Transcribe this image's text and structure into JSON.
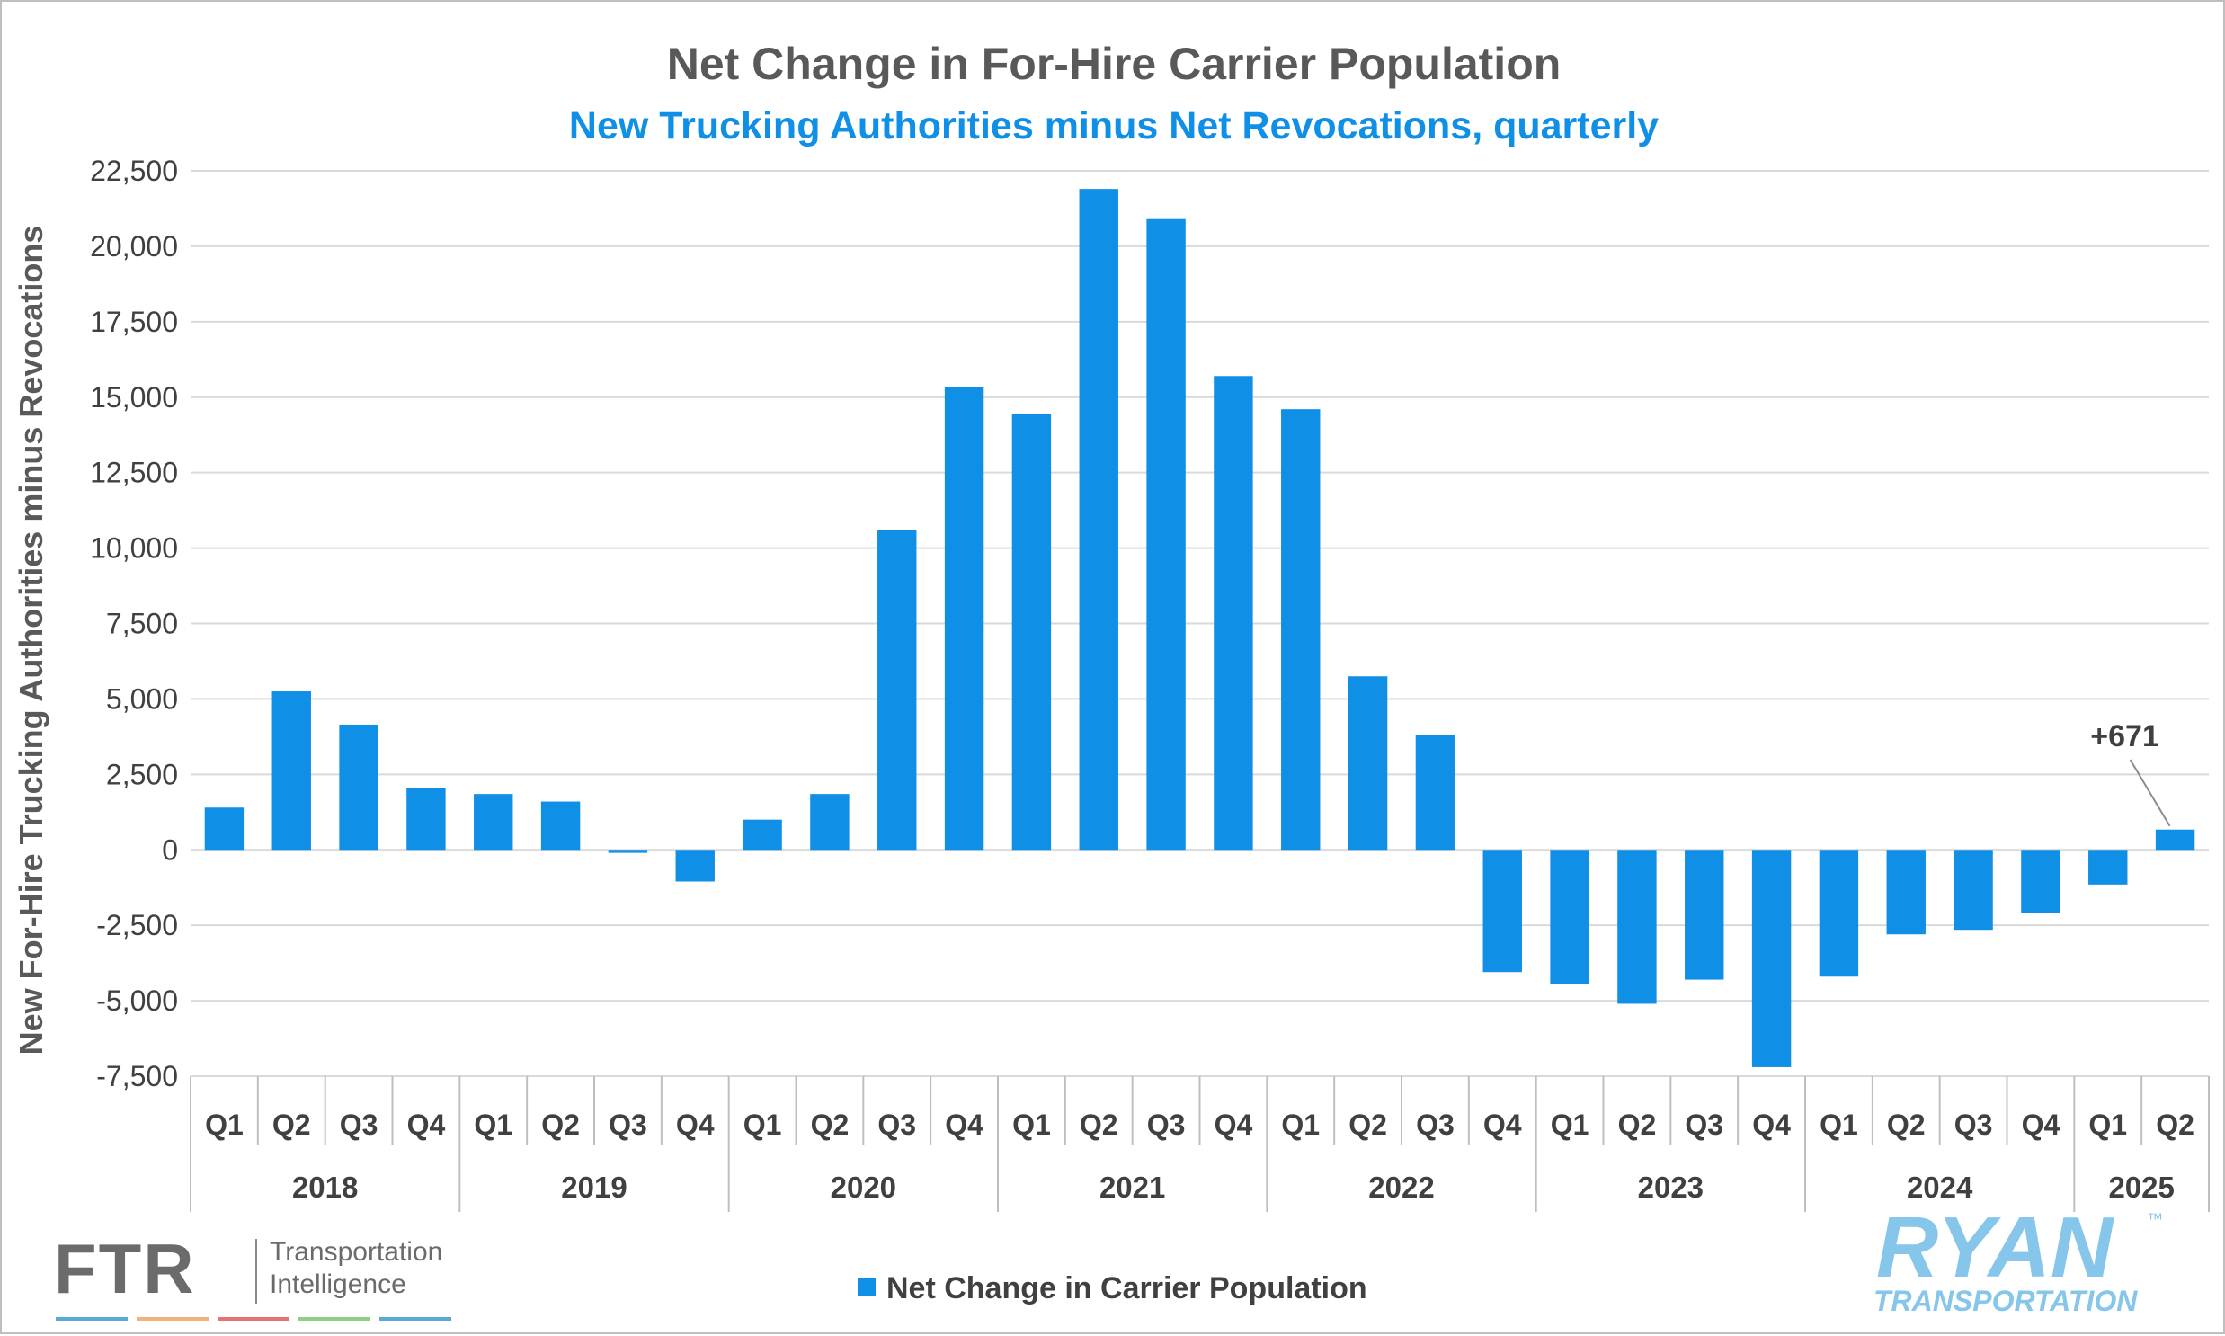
{
  "chart_data": {
    "type": "bar",
    "title": "Net Change in For-Hire Carrier Population",
    "subtitle": "New Trucking Authorities minus Net Revocations, quarterly",
    "ylabel": "New For-Hire Trucking Authorities minus Revocations",
    "ylim": [
      -7500,
      22500
    ],
    "yticks": [
      22500,
      20000,
      17500,
      15000,
      12500,
      10000,
      7500,
      5000,
      2500,
      0,
      -2500,
      -5000,
      -7500
    ],
    "ytick_labels": [
      "22,500",
      "20,000",
      "17,500",
      "15,000",
      "12,500",
      "10,000",
      "7,500",
      "5,000",
      "2,500",
      "0",
      "-2,500",
      "-5,000",
      "-7,500"
    ],
    "grid": true,
    "categories": [
      "Q1",
      "Q2",
      "Q3",
      "Q4",
      "Q1",
      "Q2",
      "Q3",
      "Q4",
      "Q1",
      "Q2",
      "Q3",
      "Q4",
      "Q1",
      "Q2",
      "Q3",
      "Q4",
      "Q1",
      "Q2",
      "Q3",
      "Q4",
      "Q1",
      "Q2",
      "Q3",
      "Q4",
      "Q1",
      "Q2",
      "Q3",
      "Q4",
      "Q1",
      "Q2"
    ],
    "years": [
      {
        "label": "2018",
        "count": 4
      },
      {
        "label": "2019",
        "count": 4
      },
      {
        "label": "2020",
        "count": 4
      },
      {
        "label": "2021",
        "count": 4
      },
      {
        "label": "2022",
        "count": 4
      },
      {
        "label": "2023",
        "count": 4
      },
      {
        "label": "2024",
        "count": 4
      },
      {
        "label": "2025",
        "count": 2
      }
    ],
    "series": [
      {
        "name": "Net Change in Carrier Population",
        "color": "#0f8fe5",
        "values": [
          1400,
          5250,
          4150,
          2050,
          1850,
          1600,
          -100,
          -1050,
          1000,
          1850,
          10600,
          15350,
          14450,
          21900,
          20900,
          15700,
          14600,
          5750,
          3800,
          -4050,
          -4450,
          -5100,
          -4300,
          -7200,
          -4200,
          -2800,
          -2650,
          -2100,
          -1150,
          671
        ]
      }
    ],
    "annotations": [
      {
        "text": "+671",
        "index": 29
      }
    ],
    "legend": {
      "position": "bottom-center"
    }
  },
  "logos": {
    "ftr": {
      "name": "FTR",
      "line1": "Transportation",
      "line2": "Intelligence",
      "stripe_colors": [
        "#5aa9d6",
        "#f0b27a",
        "#e57373",
        "#8fcf7f",
        "#5aa9d6"
      ]
    },
    "ryan": {
      "name": "RYAN",
      "tagline": "TRANSPORTATION",
      "tm": "™"
    }
  }
}
